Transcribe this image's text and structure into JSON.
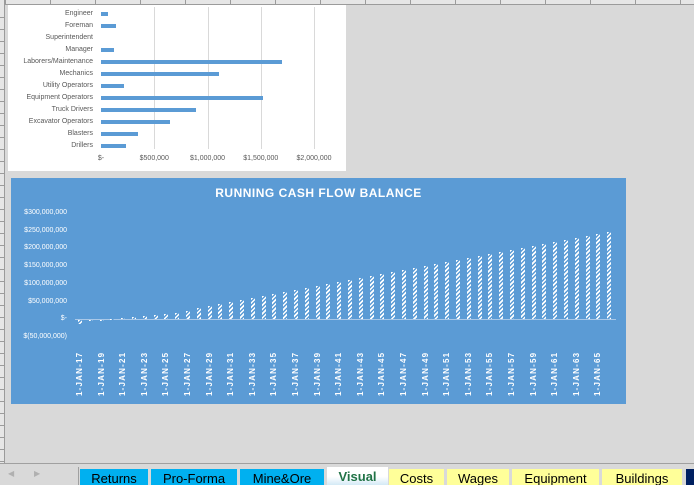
{
  "wages_chart": {
    "categories": [
      "Engineer",
      "Foreman",
      "Superintendent",
      "Manager",
      "Laborers/Maintenance",
      "Mechanics",
      "Utility Operators",
      "Equipment Operators",
      "Truck Drivers",
      "Excavator Operators",
      "Blasters",
      "Drillers"
    ],
    "ticks": [
      "$-",
      "$500,000",
      "$1,000,000",
      "$1,500,000",
      "$2,000,000"
    ]
  },
  "cash_chart": {
    "title": "RUNNING CASH FLOW BALANCE",
    "y_ticks": [
      "$300,000,000",
      "$250,000,000",
      "$200,000,000",
      "$150,000,000",
      "$100,000,000",
      "$50,000,000",
      "$-",
      "$(50,000,000)"
    ],
    "x_ticks": [
      "1-JAN-17",
      "1-JAN-19",
      "1-JAN-21",
      "1-JAN-23",
      "1-JAN-25",
      "1-JAN-27",
      "1-JAN-29",
      "1-JAN-31",
      "1-JAN-33",
      "1-JAN-35",
      "1-JAN-37",
      "1-JAN-39",
      "1-JAN-41",
      "1-JAN-43",
      "1-JAN-45",
      "1-JAN-47",
      "1-JAN-49",
      "1-JAN-51",
      "1-JAN-53",
      "1-JAN-55",
      "1-JAN-57",
      "1-JAN-59",
      "1-JAN-61",
      "1-JAN-63",
      "1-JAN-65"
    ]
  },
  "chart_data": [
    {
      "type": "bar",
      "orientation": "horizontal",
      "title": "",
      "categories": [
        "Engineer",
        "Foreman",
        "Superintendent",
        "Manager",
        "Laborers/Maintenance",
        "Mechanics",
        "Utility Operators",
        "Equipment Operators",
        "Truck Drivers",
        "Excavator Operators",
        "Blasters",
        "Drillers"
      ],
      "values": [
        66000,
        141000,
        0,
        122000,
        1700000,
        1110000,
        216000,
        1520000,
        892000,
        648000,
        347000,
        235000
      ],
      "xlabel": "",
      "ylabel": "",
      "xlim": [
        0,
        2250000
      ],
      "x_ticks": [
        "$-",
        "$500,000",
        "$1,000,000",
        "$1,500,000",
        "$2,000,000"
      ],
      "grid": true,
      "color": "#5b9bd5"
    },
    {
      "type": "bar",
      "title": "RUNNING CASH FLOW BALANCE",
      "x_tick_labels": [
        "1-JAN-17",
        "1-JAN-19",
        "1-JAN-21",
        "1-JAN-23",
        "1-JAN-25",
        "1-JAN-27",
        "1-JAN-29",
        "1-JAN-31",
        "1-JAN-33",
        "1-JAN-35",
        "1-JAN-37",
        "1-JAN-39",
        "1-JAN-41",
        "1-JAN-43",
        "1-JAN-45",
        "1-JAN-47",
        "1-JAN-49",
        "1-JAN-51",
        "1-JAN-53",
        "1-JAN-55",
        "1-JAN-57",
        "1-JAN-59",
        "1-JAN-61",
        "1-JAN-63",
        "1-JAN-65"
      ],
      "categories": [
        "2017",
        "2018",
        "2019",
        "2020",
        "2021",
        "2022",
        "2023",
        "2024",
        "2025",
        "2026",
        "2027",
        "2028",
        "2029",
        "2030",
        "2031",
        "2032",
        "2033",
        "2034",
        "2035",
        "2036",
        "2037",
        "2038",
        "2039",
        "2040",
        "2041",
        "2042",
        "2043",
        "2044",
        "2045",
        "2046",
        "2047",
        "2048",
        "2049",
        "2050",
        "2051",
        "2052",
        "2053",
        "2054",
        "2055",
        "2056",
        "2057",
        "2058",
        "2059",
        "2060",
        "2061",
        "2062",
        "2063",
        "2064",
        "2065",
        "2066"
      ],
      "values": [
        -11000000,
        -3000000,
        -1000000,
        1000000,
        3000000,
        6000000,
        9000000,
        12000000,
        15000000,
        18000000,
        24000000,
        30000000,
        36000000,
        42000000,
        48000000,
        54000000,
        59000000,
        65000000,
        71000000,
        76000000,
        82000000,
        88000000,
        93000000,
        99000000,
        105000000,
        110000000,
        116000000,
        121000000,
        127000000,
        132000000,
        138000000,
        144000000,
        149000000,
        155000000,
        161000000,
        166000000,
        172000000,
        177000000,
        183000000,
        189000000,
        194000000,
        200000000,
        206000000,
        211000000,
        217000000,
        223000000,
        228000000,
        234000000,
        240000000,
        245000000
      ],
      "xlabel": "",
      "ylabel": "",
      "ylim": [
        -50000000,
        300000000
      ],
      "y_ticks": [
        "$300,000,000",
        "$250,000,000",
        "$200,000,000",
        "$150,000,000",
        "$100,000,000",
        "$50,000,000",
        "$-",
        "$(50,000,000)"
      ],
      "grid": false,
      "background": "#5b9bd5",
      "bar_pattern": "white diagonal hatch"
    }
  ],
  "sheet_tabs": [
    {
      "label": "Returns",
      "color": "#00b0f0",
      "active": false
    },
    {
      "label": "Pro-Forma",
      "color": "#00b0f0",
      "active": false
    },
    {
      "label": "Mine&Ore",
      "color": "#00b0f0",
      "active": false
    },
    {
      "label": "Visual",
      "color": "#ffffff",
      "active": true
    },
    {
      "label": "Costs",
      "color": "#ffff99",
      "active": false
    },
    {
      "label": "Wages",
      "color": "#ffff99",
      "active": false
    },
    {
      "label": "Equipment",
      "color": "#ffff99",
      "active": false
    },
    {
      "label": "Buildings",
      "color": "#ffff99",
      "active": false
    },
    {
      "label": "",
      "color": "#002060",
      "active": false
    }
  ],
  "nav": {
    "prev_icon": "◀",
    "next_icon": "▶"
  }
}
